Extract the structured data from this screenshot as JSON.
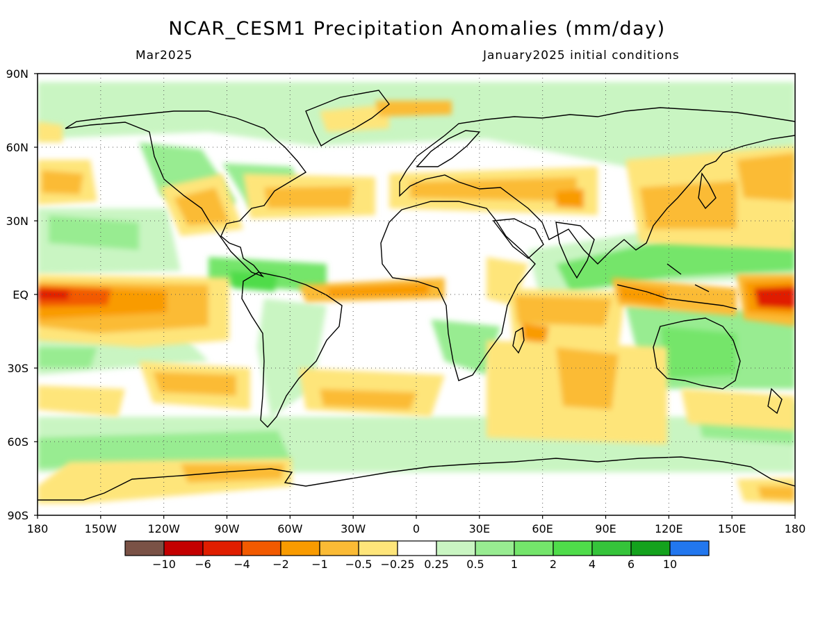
{
  "title": "NCAR_CESM1 Precipitation Anomalies (mm/day)",
  "subtitle_left": "Mar2025",
  "subtitle_right": "January2025 initial conditions",
  "lat_labels": [
    "90N",
    "60N",
    "30N",
    "EQ",
    "30S",
    "60S",
    "90S"
  ],
  "lon_labels": [
    "180",
    "150W",
    "120W",
    "90W",
    "60W",
    "30W",
    "0",
    "30E",
    "60E",
    "90E",
    "120E",
    "150E",
    "180"
  ],
  "colorbar": {
    "colors": [
      "#7a5246",
      "#c40000",
      "#e01e00",
      "#f25a00",
      "#f99b00",
      "#fbbb35",
      "#fee57a",
      "#ffffff",
      "#c9f5c2",
      "#98ec91",
      "#74e56b",
      "#4fdc4a",
      "#35c43a",
      "#14a21d",
      "#2277ee"
    ],
    "labels": [
      "-10",
      "-6",
      "-4",
      "-2",
      "-1",
      "-0.5",
      "-0.25",
      "0.25",
      "0.5",
      "1",
      "2",
      "4",
      "6",
      "10"
    ]
  },
  "anomaly_colors": {
    "dry_light": "#fee57a",
    "dry_mid": "#fbbb35",
    "dry_orange": "#f99b00",
    "dry_deep": "#f25a00",
    "dry_red": "#e01e00",
    "wet_light": "#c9f5c2",
    "wet_mid": "#98ec91",
    "wet_green": "#74e56b",
    "wet_deep": "#4fdc4a"
  }
}
